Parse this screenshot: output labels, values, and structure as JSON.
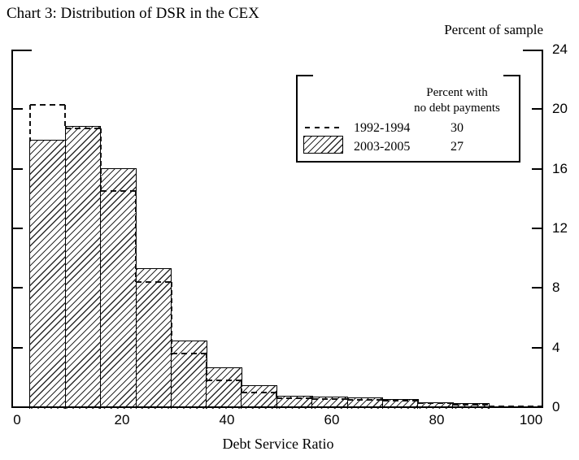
{
  "chart_data": {
    "type": "bar",
    "subtype": "histogram",
    "title": "Chart 3: Distribution of DSR in the CEX",
    "xlabel": "Debt Service Ratio",
    "ylabel": "Percent of sample",
    "y_axis_side": "right",
    "grid": false,
    "xlim": [
      -1,
      100
    ],
    "ylim": [
      0,
      24
    ],
    "x_ticks": [
      0,
      20,
      40,
      60,
      80,
      100
    ],
    "y_ticks": [
      0,
      4,
      8,
      12,
      16,
      20,
      24
    ],
    "bin_edges": [
      2.5,
      9.2,
      15.9,
      22.7,
      29.4,
      36.1,
      42.8,
      49.5,
      56.3,
      63.0,
      69.7,
      76.4,
      83.1,
      89.9
    ],
    "series": [
      {
        "name": "1992-1994",
        "style": "dashed-outline",
        "percent_no_debt_payments": 30,
        "values": [
          20.3,
          18.7,
          14.5,
          8.4,
          3.6,
          1.8,
          0.97,
          0.62,
          0.55,
          0.5,
          0.44,
          0.28,
          0.15
        ],
        "tail": {
          "from": 89.9,
          "to": 100,
          "value": 0.08
        }
      },
      {
        "name": "2003-2005",
        "style": "hatched-bars",
        "percent_no_debt_payments": 27,
        "values": [
          17.9,
          18.8,
          16.0,
          9.3,
          4.4,
          2.6,
          1.4,
          0.72,
          0.66,
          0.58,
          0.48,
          0.3,
          0.22
        ]
      }
    ],
    "legend": {
      "position": "top-right",
      "header": [
        "Percent with",
        "no debt payments"
      ]
    }
  }
}
